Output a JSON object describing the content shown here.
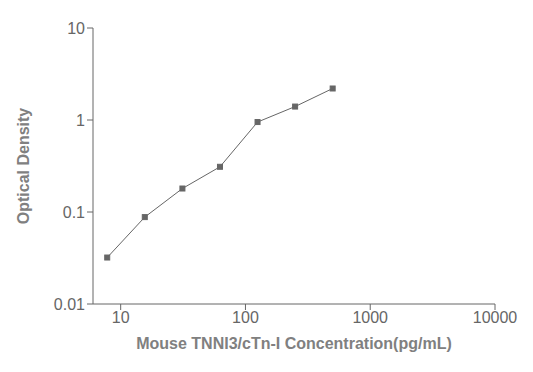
{
  "chart_data": {
    "type": "line",
    "x": [
      7.8,
      15.6,
      31.25,
      62.5,
      125,
      250,
      500
    ],
    "values": [
      0.032,
      0.088,
      0.18,
      0.31,
      0.95,
      1.4,
      2.2
    ],
    "xlim": [
      6,
      10000
    ],
    "ylim": [
      0.01,
      10
    ],
    "xticks": [
      10,
      100,
      1000,
      10000
    ],
    "yticks": [
      0.01,
      0.1,
      1,
      10
    ],
    "log": true,
    "grid": false,
    "xlabel": "Mouse TNNI3/cTn-I Concentration(pg/mL)",
    "ylabel": "Optical Density",
    "color": "#666666",
    "marker": "square"
  }
}
